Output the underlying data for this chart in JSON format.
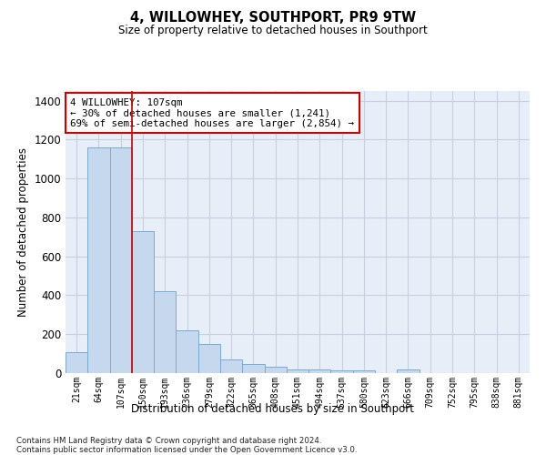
{
  "title": "4, WILLOWHEY, SOUTHPORT, PR9 9TW",
  "subtitle": "Size of property relative to detached houses in Southport",
  "xlabel": "Distribution of detached houses by size in Southport",
  "ylabel": "Number of detached properties",
  "categories": [
    "21sqm",
    "64sqm",
    "107sqm",
    "150sqm",
    "193sqm",
    "236sqm",
    "279sqm",
    "322sqm",
    "365sqm",
    "408sqm",
    "451sqm",
    "494sqm",
    "537sqm",
    "580sqm",
    "623sqm",
    "666sqm",
    "709sqm",
    "752sqm",
    "795sqm",
    "838sqm",
    "881sqm"
  ],
  "bar_values": [
    107,
    1160,
    1160,
    730,
    420,
    218,
    152,
    72,
    48,
    33,
    20,
    18,
    15,
    15,
    0,
    20,
    0,
    0,
    0,
    0,
    0
  ],
  "highlight_index": 2,
  "bar_color": "#c5d8ee",
  "bar_edge_color": "#7aaad0",
  "vline_x_index": 2,
  "annotation_text": "4 WILLOWHEY: 107sqm\n← 30% of detached houses are smaller (1,241)\n69% of semi-detached houses are larger (2,854) →",
  "annotation_box_facecolor": "#ffffff",
  "annotation_box_edgecolor": "#cc0000",
  "red_line_color": "#cc0000",
  "footer": "Contains HM Land Registry data © Crown copyright and database right 2024.\nContains public sector information licensed under the Open Government Licence v3.0.",
  "ylim": [
    0,
    1450
  ],
  "yticks": [
    0,
    200,
    400,
    600,
    800,
    1000,
    1200,
    1400
  ],
  "grid_color": "#c8cfe0",
  "bg_color": "#e8eef8",
  "figsize": [
    6.0,
    5.0
  ],
  "dpi": 100
}
